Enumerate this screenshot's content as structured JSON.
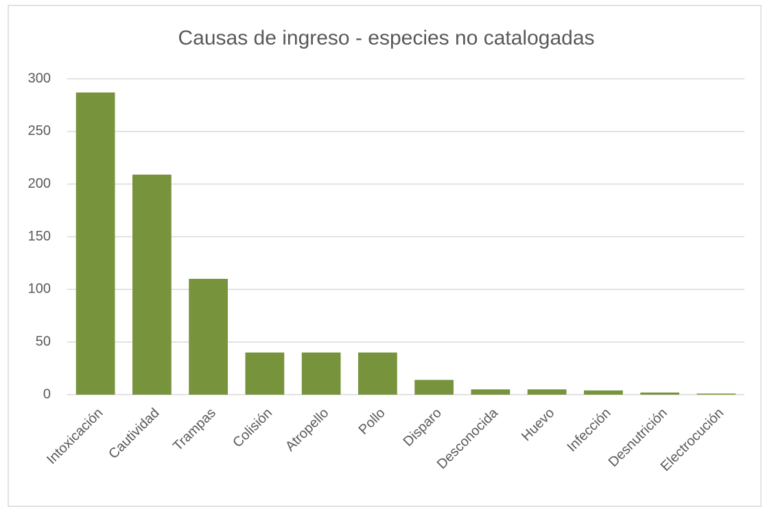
{
  "chart_data": {
    "type": "bar",
    "title": "Causas de ingreso - especies no catalogadas",
    "categories": [
      "Intoxicación",
      "Cautividad",
      "Trampas",
      "Colisión",
      "Atropello",
      "Pollo",
      "Disparo",
      "Desconocida",
      "Huevo",
      "Infección",
      "Desnutrición",
      "Electrocución"
    ],
    "values": [
      287,
      209,
      110,
      40,
      40,
      40,
      14,
      5,
      5,
      4,
      2,
      1
    ],
    "color": "#77933c",
    "ylim": [
      0,
      300
    ],
    "yticks": [
      0,
      50,
      100,
      150,
      200,
      250,
      300
    ],
    "grid": true
  }
}
